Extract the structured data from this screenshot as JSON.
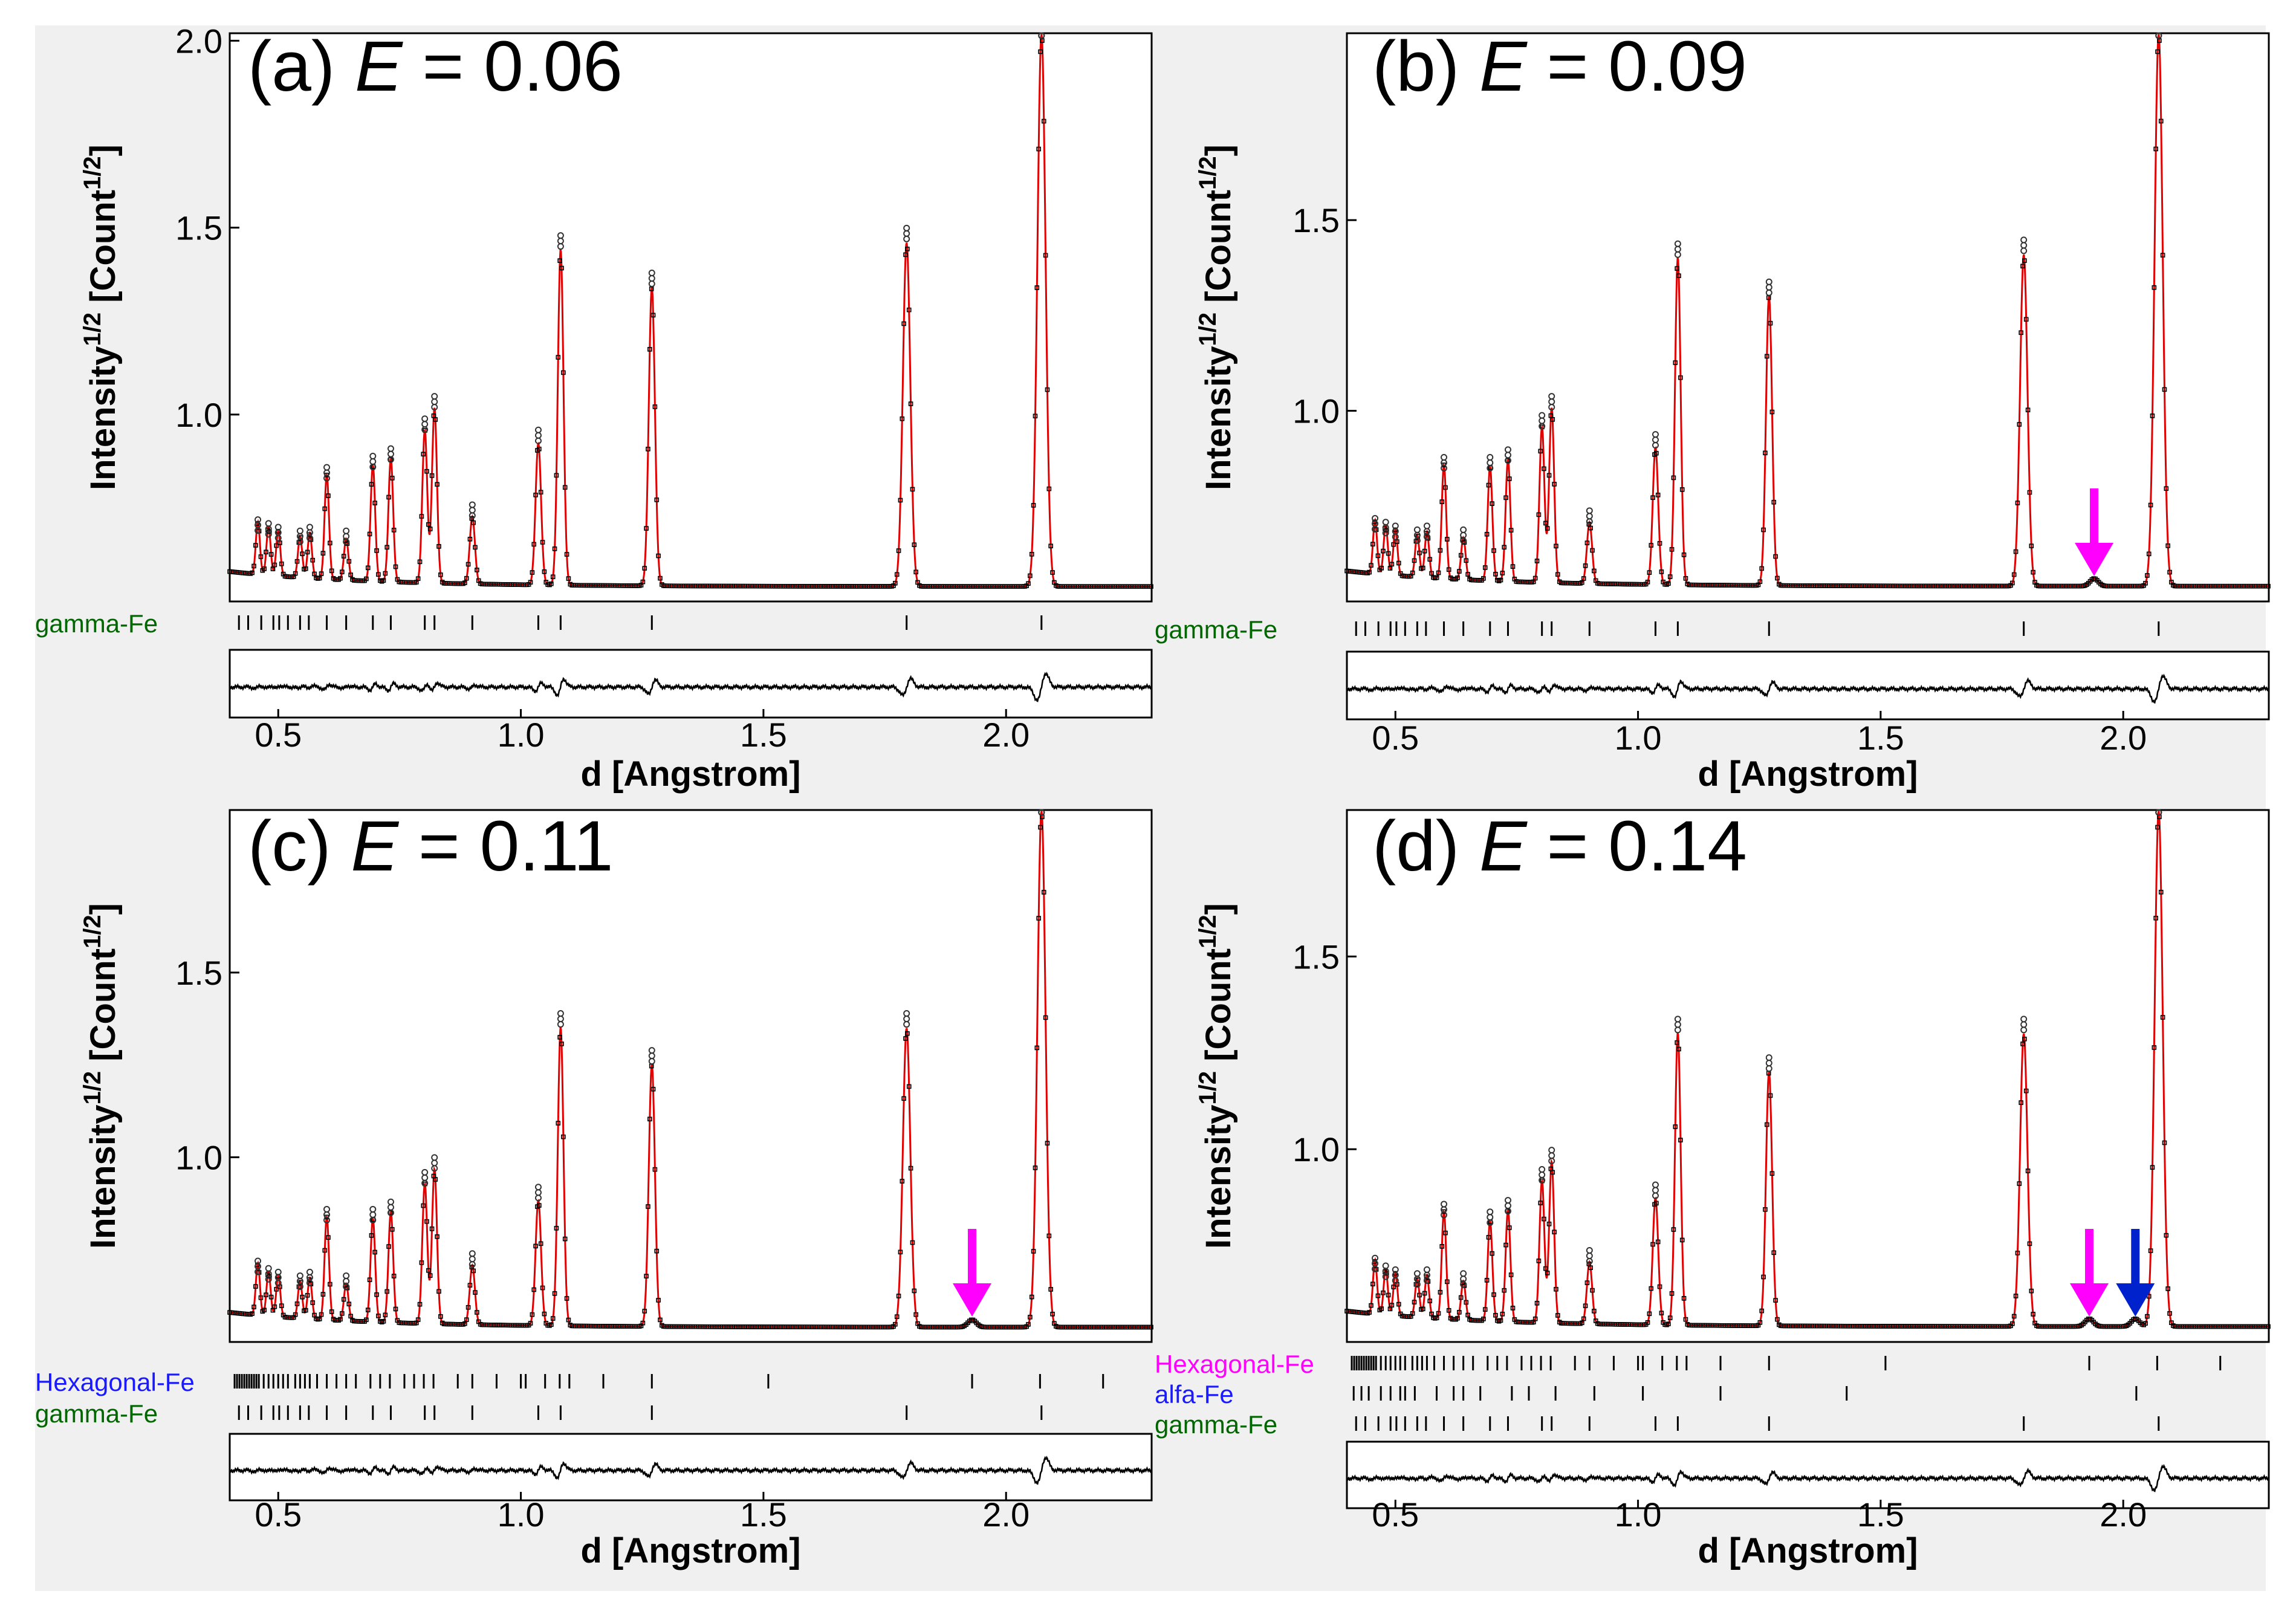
{
  "colors": {
    "background": "#f0f0f0",
    "fit": "#e00000",
    "observed": "#000000",
    "magenta": "#ff00ff",
    "blue": "#0022cc",
    "green": "#006600",
    "label_blue": "#1a1aff"
  },
  "axis": {
    "xlabel": "d [Angstrom]",
    "ylabel_main": "Intensity",
    "ylabel_sup": "1/2",
    "ylabel_unit": " [Count",
    "ylabel_end": "]",
    "xlim": [
      0.4,
      2.3
    ],
    "x_ticks": [
      0.5,
      1.0,
      1.5,
      2.0
    ],
    "x_tick_labels": [
      "0.5",
      "1.0",
      "1.5",
      "2.0"
    ]
  },
  "gamma_fe_reflections": [
    0.419,
    0.438,
    0.465,
    0.49,
    0.502,
    0.52,
    0.545,
    0.563,
    0.6,
    0.64,
    0.695,
    0.732,
    0.802,
    0.822,
    0.9,
    1.036,
    1.082,
    1.27,
    1.795,
    2.073
  ],
  "chart_data": [
    {
      "type": "line",
      "panel": "a",
      "title_prefix": "(a) ",
      "title_var": "E",
      "title_value": " = 0.06",
      "ylim": [
        0.5,
        2.02
      ],
      "y_ticks": [
        1.0,
        1.5,
        2.0
      ],
      "y_tick_labels": [
        "1.0",
        "1.5",
        "2.0"
      ],
      "background_level": 0.54,
      "peaks": [
        {
          "d": 0.458,
          "h": 0.68
        },
        {
          "d": 0.48,
          "h": 0.67
        },
        {
          "d": 0.5,
          "h": 0.66
        },
        {
          "d": 0.545,
          "h": 0.65
        },
        {
          "d": 0.565,
          "h": 0.66
        },
        {
          "d": 0.6,
          "h": 0.82
        },
        {
          "d": 0.64,
          "h": 0.65
        },
        {
          "d": 0.695,
          "h": 0.85
        },
        {
          "d": 0.732,
          "h": 0.87
        },
        {
          "d": 0.802,
          "h": 0.95
        },
        {
          "d": 0.822,
          "h": 1.01
        },
        {
          "d": 0.9,
          "h": 0.72
        },
        {
          "d": 1.036,
          "h": 0.92
        },
        {
          "d": 1.082,
          "h": 1.44
        },
        {
          "d": 1.27,
          "h": 1.34
        },
        {
          "d": 1.795,
          "h": 1.46
        },
        {
          "d": 2.073,
          "h": 2.02
        }
      ],
      "phase_labels": [
        "gamma-Fe"
      ],
      "arrows": []
    },
    {
      "type": "line",
      "panel": "b",
      "title_prefix": "(b) ",
      "title_var": "E",
      "title_value": " = 0.09",
      "ylim": [
        0.5,
        1.99
      ],
      "y_ticks": [
        1.0,
        1.5
      ],
      "y_tick_labels": [
        "1.0",
        "1.5"
      ],
      "background_level": 0.54,
      "peaks": [
        {
          "d": 0.458,
          "h": 0.68
        },
        {
          "d": 0.48,
          "h": 0.67
        },
        {
          "d": 0.5,
          "h": 0.66
        },
        {
          "d": 0.545,
          "h": 0.65
        },
        {
          "d": 0.565,
          "h": 0.66
        },
        {
          "d": 0.6,
          "h": 0.84
        },
        {
          "d": 0.64,
          "h": 0.65
        },
        {
          "d": 0.695,
          "h": 0.84
        },
        {
          "d": 0.732,
          "h": 0.86
        },
        {
          "d": 0.802,
          "h": 0.95
        },
        {
          "d": 0.822,
          "h": 1.0
        },
        {
          "d": 0.9,
          "h": 0.7
        },
        {
          "d": 1.036,
          "h": 0.9
        },
        {
          "d": 1.082,
          "h": 1.4
        },
        {
          "d": 1.27,
          "h": 1.3
        },
        {
          "d": 1.795,
          "h": 1.41
        },
        {
          "d": 2.073,
          "h": 1.99
        }
      ],
      "phase_labels": [
        "gamma-Fe"
      ],
      "arrows": [
        {
          "d": 1.94,
          "color": "magenta"
        }
      ]
    },
    {
      "type": "line",
      "panel": "c",
      "title_prefix": "(c) ",
      "title_var": "E",
      "title_value": " = 0.11",
      "ylim": [
        0.5,
        1.94
      ],
      "y_ticks": [
        1.0,
        1.5
      ],
      "y_tick_labels": [
        "1.0",
        "1.5"
      ],
      "background_level": 0.54,
      "peaks": [
        {
          "d": 0.458,
          "h": 0.68
        },
        {
          "d": 0.48,
          "h": 0.66
        },
        {
          "d": 0.5,
          "h": 0.65
        },
        {
          "d": 0.545,
          "h": 0.64
        },
        {
          "d": 0.565,
          "h": 0.65
        },
        {
          "d": 0.6,
          "h": 0.82
        },
        {
          "d": 0.64,
          "h": 0.64
        },
        {
          "d": 0.695,
          "h": 0.82
        },
        {
          "d": 0.732,
          "h": 0.84
        },
        {
          "d": 0.802,
          "h": 0.92
        },
        {
          "d": 0.822,
          "h": 0.96
        },
        {
          "d": 0.9,
          "h": 0.7
        },
        {
          "d": 1.036,
          "h": 0.88
        },
        {
          "d": 1.082,
          "h": 1.35
        },
        {
          "d": 1.27,
          "h": 1.25
        },
        {
          "d": 1.795,
          "h": 1.35
        },
        {
          "d": 2.073,
          "h": 1.94
        }
      ],
      "phase_labels": [
        "Hexagonal-Fe",
        "gamma-Fe"
      ],
      "arrows": [
        {
          "d": 1.93,
          "color": "magenta"
        }
      ]
    },
    {
      "type": "line",
      "panel": "d",
      "title_prefix": "(d) ",
      "title_var": "E",
      "title_value": " = 0.14",
      "ylim": [
        0.5,
        1.88
      ],
      "y_ticks": [
        1.0,
        1.5
      ],
      "y_tick_labels": [
        "1.0",
        "1.5"
      ],
      "background_level": 0.54,
      "peaks": [
        {
          "d": 0.458,
          "h": 0.68
        },
        {
          "d": 0.48,
          "h": 0.66
        },
        {
          "d": 0.5,
          "h": 0.65
        },
        {
          "d": 0.545,
          "h": 0.64
        },
        {
          "d": 0.565,
          "h": 0.65
        },
        {
          "d": 0.6,
          "h": 0.82
        },
        {
          "d": 0.64,
          "h": 0.64
        },
        {
          "d": 0.695,
          "h": 0.8
        },
        {
          "d": 0.732,
          "h": 0.83
        },
        {
          "d": 0.802,
          "h": 0.91
        },
        {
          "d": 0.822,
          "h": 0.96
        },
        {
          "d": 0.9,
          "h": 0.7
        },
        {
          "d": 1.036,
          "h": 0.87
        },
        {
          "d": 1.082,
          "h": 1.3
        },
        {
          "d": 1.27,
          "h": 1.2
        },
        {
          "d": 1.795,
          "h": 1.3
        },
        {
          "d": 2.073,
          "h": 1.88
        }
      ],
      "phase_labels": [
        "Hexagonal-Fe",
        "alfa-Fe",
        "gamma-Fe"
      ],
      "arrows": [
        {
          "d": 1.93,
          "color": "magenta"
        },
        {
          "d": 2.025,
          "color": "blue"
        }
      ]
    }
  ]
}
